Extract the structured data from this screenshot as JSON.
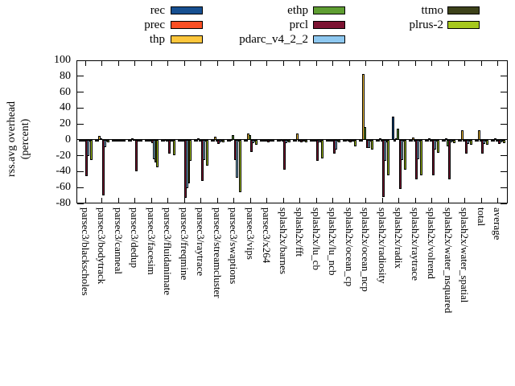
{
  "chart_data": {
    "type": "bar",
    "title": "",
    "ylabel_line1": "rss.avg overhead",
    "ylabel_line2": "(percent)",
    "ylim": [
      -80,
      100
    ],
    "ytick_step": 20,
    "ytick_labels": [
      "100",
      "80",
      "60",
      "40",
      "20",
      "0",
      "-20",
      "-40",
      "-60",
      "-80"
    ],
    "grid": false,
    "legend_position": "top",
    "categories": [
      "parsec3/blackscholes",
      "parsec3/bodytrack",
      "parsec3/canneal",
      "parsec3/dedup",
      "parsec3/facesim",
      "parsec3/fluidanimate",
      "parsec3/freqmine",
      "parsec3/raytrace",
      "parsec3/streamcluster",
      "parsec3/swaptions",
      "parsec3/vips",
      "parsec3/x264",
      "splash2x/barnes",
      "splash2x/fft",
      "splash2x/lu_cb",
      "splash2x/lu_ncb",
      "splash2x/ocean_cp",
      "splash2x/ocean_ncp",
      "splash2x/radiosity",
      "splash2x/radix",
      "splash2x/raytrace",
      "splash2x/volrend",
      "splash2x/water_nsquared",
      "splash2x/water_spatial",
      "total",
      "average"
    ],
    "series": [
      {
        "name": "rec",
        "color": "#175091",
        "values": [
          -1,
          -1,
          -1,
          -1,
          -2,
          -1,
          -2,
          -1,
          -1,
          -1,
          -1,
          -1,
          -1,
          -1,
          -1,
          -1,
          -1,
          -1,
          -1,
          29,
          -1,
          -1,
          -1,
          -1,
          -1,
          -1
        ]
      },
      {
        "name": "prec",
        "color": "#fb4f24",
        "values": [
          -1,
          -1,
          -1,
          -1,
          -2,
          -1,
          -2,
          -1,
          -1,
          -1,
          -1,
          -1,
          -1,
          -1,
          -1,
          -1,
          -1,
          -1,
          -1,
          -1,
          -1,
          -1,
          -1,
          -1,
          -1,
          -1
        ]
      },
      {
        "name": "thp",
        "color": "#fdc63c",
        "values": [
          -2,
          5,
          -1,
          2,
          -2,
          1,
          -2,
          2,
          4,
          1,
          8,
          -1,
          1,
          8,
          -2,
          -1,
          1,
          83,
          2,
          2,
          3,
          2,
          2,
          12,
          12,
          2
        ]
      },
      {
        "name": "ethp",
        "color": "#5f9e32",
        "values": [
          -2,
          2,
          -1,
          1,
          -2,
          -1,
          -2,
          -1,
          -2,
          6,
          6,
          -1,
          -1,
          -1,
          -2,
          -2,
          -1,
          16,
          -2,
          14,
          -1,
          -1,
          -8,
          -1,
          -1,
          -1
        ]
      },
      {
        "name": "prcl",
        "color": "#7c1332",
        "values": [
          -46,
          -70,
          -2,
          -40,
          -4,
          -17,
          -73,
          -52,
          -5,
          -25,
          -15,
          -3,
          -38,
          -3,
          -26,
          -17,
          -3,
          -10,
          -72,
          -62,
          -50,
          -45,
          -50,
          -17,
          -17,
          -5
        ]
      },
      {
        "name": "pdarc_v4_2_2",
        "color": "#8ec8f0",
        "values": [
          -20,
          -9,
          -2,
          -2,
          -24,
          -2,
          -61,
          -25,
          -3,
          -48,
          -4,
          -2,
          -4,
          -2,
          -3,
          -12,
          -2,
          -10,
          -26,
          -25,
          -24,
          -12,
          -3,
          -5,
          -5,
          -3
        ]
      },
      {
        "name": "ttmo",
        "color": "#3d421a",
        "values": [
          -2,
          -1,
          -1,
          -1,
          -28,
          -2,
          -55,
          -2,
          -2,
          -2,
          -1,
          -1,
          -1,
          -1,
          -3,
          -2,
          -1,
          -2,
          -3,
          -2,
          -2,
          -2,
          -1,
          -1,
          -2,
          -2
        ]
      },
      {
        "name": "plrus-2",
        "color": "#a6c71e",
        "values": [
          -25,
          -3,
          -2,
          -2,
          -35,
          -19,
          -26,
          -32,
          -3,
          -66,
          -6,
          -2,
          -3,
          -3,
          -23,
          -3,
          -8,
          -12,
          -45,
          -38,
          -45,
          -16,
          -4,
          -6,
          -6,
          -4
        ]
      }
    ]
  }
}
